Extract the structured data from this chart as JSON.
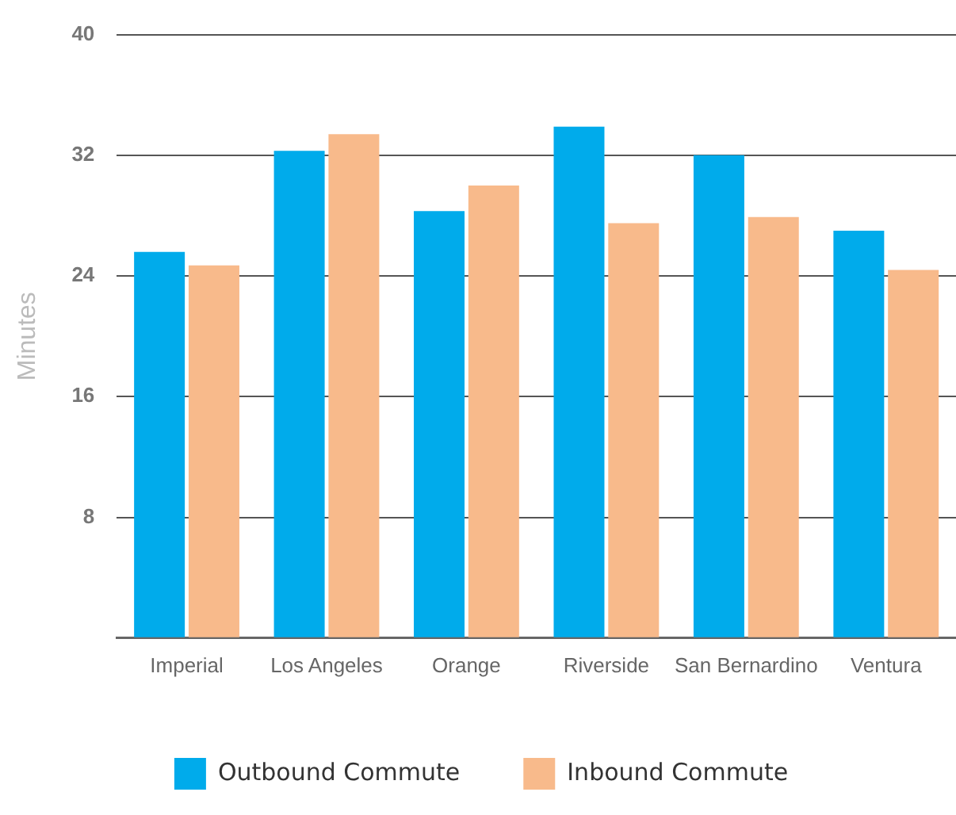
{
  "chart_data": {
    "type": "bar",
    "ylabel": "Minutes",
    "categories": [
      "Imperial",
      "Los Angeles",
      "Orange",
      "Riverside",
      "San Bernardino",
      "Ventura"
    ],
    "series": [
      {
        "name": "Outbound Commute",
        "color": "#00abeb",
        "values": [
          25.6,
          32.3,
          28.3,
          33.9,
          32.0,
          27.0
        ]
      },
      {
        "name": "Inbound Commute",
        "color": "#f8ba8b",
        "values": [
          24.7,
          33.4,
          30.0,
          27.5,
          27.9,
          24.4
        ]
      }
    ],
    "ylim": [
      0,
      40
    ],
    "yticks": [
      {
        "value": 0,
        "label": null
      },
      8,
      16,
      24,
      32,
      40
    ],
    "grid": "y",
    "legend": "bottom"
  }
}
